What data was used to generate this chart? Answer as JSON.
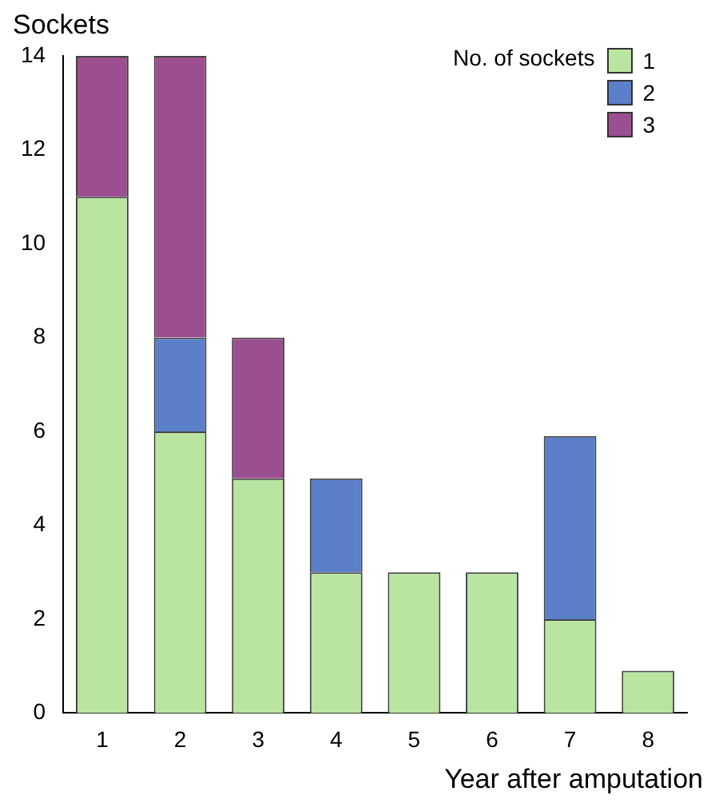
{
  "chart_data": {
    "type": "bar",
    "stacked": true,
    "xlabel": "Year after amputation",
    "ylabel": "Sockets",
    "legend_title": "No. of sockets",
    "legend": "top right",
    "grid": false,
    "categories": [
      "1",
      "2",
      "3",
      "4",
      "5",
      "6",
      "7",
      "8"
    ],
    "ylim": [
      0,
      14
    ],
    "yticks": [
      0,
      2,
      4,
      6,
      8,
      10,
      12,
      14
    ],
    "series": [
      {
        "name": "1",
        "color": "#b9e5a1",
        "values": [
          11,
          6,
          5,
          3,
          3,
          3,
          2,
          0.9
        ]
      },
      {
        "name": "2",
        "color": "#5b7fc9",
        "values": [
          0,
          2,
          0,
          2,
          0,
          0,
          3.9,
          0
        ]
      },
      {
        "name": "3",
        "color": "#9c4f90",
        "values": [
          3,
          6,
          3,
          0,
          0,
          0,
          0,
          0
        ]
      }
    ]
  }
}
